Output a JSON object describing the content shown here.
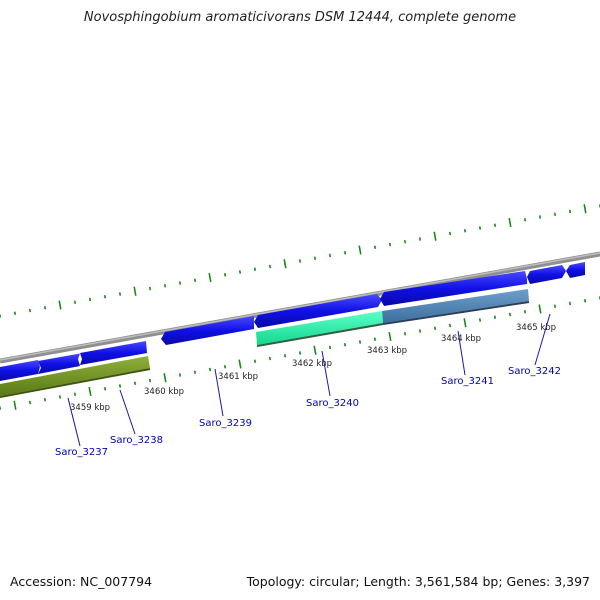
{
  "header": {
    "title": "Novosphingobium aromaticivorans DSM 12444, complete genome"
  },
  "footer": {
    "accession": "Accession: NC_007794",
    "summary": "Topology: circular; Length: 3,561,584 bp; Genes: 3,397"
  },
  "colors": {
    "backbone": "#8a8a8a",
    "forward_gene": "#1515e8",
    "highlight_green": "#6e8f1e",
    "highlight_cyan": "#22f0a8",
    "highlight_steel": "#4f86b8",
    "tick": "#1a8a1a",
    "label": "#0000bb"
  },
  "chart_data": {
    "type": "genome-map",
    "scale_labels": [
      "3459 kbp",
      "3460 kbp",
      "3461 kbp",
      "3462 kbp",
      "3463 kbp",
      "3464 kbp",
      "3465 kbp"
    ],
    "gene_labels": [
      "Saro_3237",
      "Saro_3238",
      "Saro_3239",
      "Saro_3240",
      "Saro_3241",
      "Saro_3242"
    ]
  }
}
